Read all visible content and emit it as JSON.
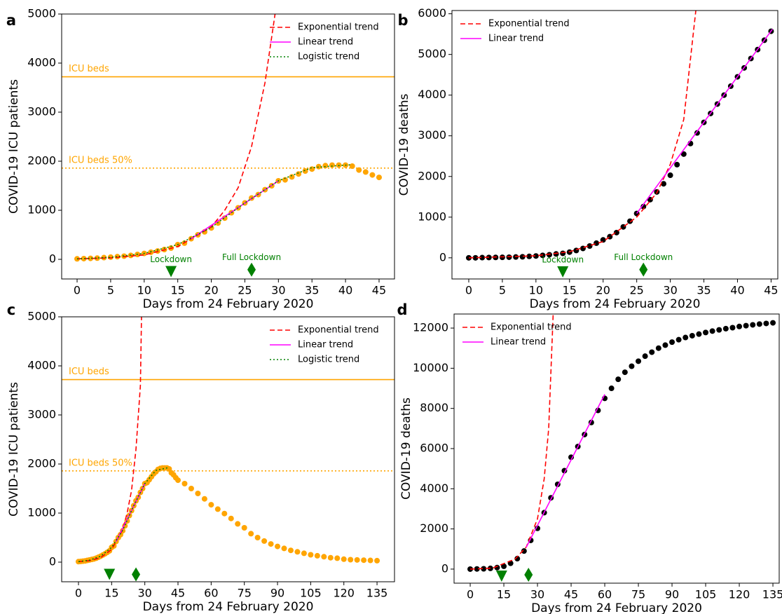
{
  "chart_data": [
    {
      "type": "scatter",
      "panel": "a",
      "xlabel": "Days from 24 February 2020",
      "ylabel": "COVID-19 ICU patients",
      "xlim": [
        -2.3,
        47.3
      ],
      "ylim": [
        -400,
        5000
      ],
      "xticks": [
        0,
        5,
        10,
        15,
        20,
        25,
        30,
        35,
        40,
        45
      ],
      "yticks": [
        0,
        1000,
        2000,
        3000,
        4000,
        5000
      ],
      "legend": "upper right",
      "series": [
        {
          "color": "#ffa500",
          "style": "points",
          "x": [
            0,
            1,
            2,
            3,
            4,
            5,
            6,
            7,
            8,
            9,
            10,
            11,
            12,
            13,
            14,
            15,
            16,
            17,
            18,
            19,
            20,
            21,
            22,
            23,
            24,
            25,
            26,
            27,
            28,
            29,
            30,
            31,
            32,
            33,
            34,
            35,
            36,
            37,
            38,
            39,
            40,
            41,
            42,
            43,
            44,
            45
          ],
          "values": [
            10,
            15,
            20,
            25,
            35,
            45,
            55,
            65,
            80,
            100,
            120,
            145,
            170,
            200,
            230,
            300,
            330,
            420,
            500,
            560,
            640,
            740,
            840,
            950,
            1050,
            1150,
            1250,
            1320,
            1420,
            1500,
            1600,
            1620,
            1680,
            1740,
            1800,
            1840,
            1890,
            1910,
            1920,
            1920,
            1920,
            1900,
            1820,
            1780,
            1720,
            1670
          ]
        },
        {
          "name": "Exponential trend",
          "color": "#ff0000",
          "style": "dashed",
          "x": [
            0,
            5,
            10,
            15,
            20,
            22,
            24,
            26,
            28,
            29.5
          ],
          "values": [
            10,
            30,
            90,
            260,
            660,
            1000,
            1460,
            2300,
            3600,
            5000
          ]
        },
        {
          "name": "Linear trend",
          "color": "#ff00ff",
          "style": "solid",
          "x": [
            17,
            30
          ],
          "values": [
            420,
            1600
          ]
        },
        {
          "name": "Logistic trend",
          "color": "#008000",
          "style": "dotted",
          "x": [
            0,
            5,
            10,
            15,
            20,
            25,
            30,
            35,
            41
          ],
          "values": [
            10,
            40,
            120,
            300,
            650,
            1150,
            1600,
            1870,
            1930
          ]
        }
      ],
      "hlines": [
        {
          "label": "ICU beds",
          "value": 3720,
          "color": "#ffa500",
          "style": "solid"
        },
        {
          "label": "ICU beds 50%",
          "value": 1860,
          "color": "#ffa500",
          "style": "dotted"
        }
      ],
      "markers": [
        {
          "label": "Lockdown",
          "x": 14,
          "y": -250,
          "shape": "v"
        },
        {
          "label": "Full Lockdown",
          "x": 26,
          "y": -210,
          "shape": "d"
        }
      ]
    },
    {
      "type": "scatter",
      "panel": "b",
      "xlabel": "Days from 24 February 2020",
      "ylabel": "COVID-19 deaths",
      "xlim": [
        -2.5,
        46
      ],
      "ylim": [
        -520,
        6080
      ],
      "xticks": [
        0,
        5,
        10,
        15,
        20,
        25,
        30,
        35,
        40,
        45
      ],
      "yticks": [
        0,
        1000,
        2000,
        3000,
        4000,
        5000,
        6000
      ],
      "legend": "upper left",
      "series": [
        {
          "color": "#000000",
          "style": "points",
          "x": [
            0,
            1,
            2,
            3,
            4,
            5,
            6,
            7,
            8,
            9,
            10,
            11,
            12,
            13,
            14,
            15,
            16,
            17,
            18,
            19,
            20,
            21,
            22,
            23,
            24,
            25,
            26,
            27,
            28,
            29,
            30,
            31,
            32,
            33,
            34,
            35,
            36,
            37,
            38,
            39,
            40,
            41,
            42,
            43,
            44,
            45
          ],
          "values": [
            0,
            0,
            5,
            8,
            10,
            12,
            15,
            20,
            25,
            35,
            45,
            60,
            75,
            95,
            110,
            140,
            180,
            230,
            290,
            360,
            440,
            520,
            620,
            760,
            900,
            1090,
            1260,
            1430,
            1620,
            1820,
            2030,
            2290,
            2550,
            2810,
            3070,
            3330,
            3550,
            3780,
            4000,
            4220,
            4450,
            4670,
            4900,
            5120,
            5350,
            5570
          ]
        },
        {
          "name": "Exponential trend",
          "color": "#ff0000",
          "style": "dashed",
          "x": [
            0,
            10,
            15,
            20,
            25,
            28,
            30,
            32,
            33.8
          ],
          "values": [
            0,
            50,
            150,
            400,
            1000,
            1600,
            2300,
            3400,
            6080
          ]
        },
        {
          "name": "Linear trend",
          "color": "#ff00ff",
          "style": "solid",
          "x": [
            25,
            45.2
          ],
          "values": [
            1090,
            5620
          ]
        }
      ],
      "markers": [
        {
          "label": "Lockdown",
          "x": 14,
          "y": -345,
          "shape": "v"
        },
        {
          "label": "Full Lockdown",
          "x": 26,
          "y": -290,
          "shape": "d"
        }
      ]
    },
    {
      "type": "scatter",
      "panel": "c",
      "xlabel": "Days from 24 February 2020",
      "ylabel": "COVID-19 ICU patients",
      "xlim": [
        -7.6,
        142.9
      ],
      "ylim": [
        -400,
        5000
      ],
      "xticks": [
        0,
        15,
        30,
        45,
        60,
        75,
        90,
        105,
        120,
        135
      ],
      "yticks": [
        0,
        1000,
        2000,
        3000,
        4000,
        5000
      ],
      "legend": "upper right",
      "series": [
        {
          "color": "#ffa500",
          "style": "points",
          "x": [
            0,
            1,
            2,
            3,
            4,
            5,
            6,
            7,
            8,
            9,
            10,
            11,
            12,
            13,
            14,
            15,
            16,
            17,
            18,
            19,
            20,
            21,
            22,
            23,
            24,
            25,
            26,
            27,
            28,
            29,
            30,
            31,
            32,
            33,
            34,
            35,
            36,
            37,
            38,
            39,
            40,
            41,
            42,
            43,
            44,
            45,
            48,
            51,
            54,
            57,
            60,
            63,
            66,
            69,
            72,
            75,
            78,
            81,
            84,
            87,
            90,
            93,
            96,
            99,
            102,
            105,
            108,
            111,
            114,
            117,
            120,
            123,
            126,
            129,
            132,
            135
          ],
          "values": [
            10,
            15,
            20,
            25,
            35,
            45,
            55,
            65,
            80,
            100,
            120,
            145,
            170,
            200,
            230,
            300,
            330,
            420,
            500,
            560,
            640,
            740,
            840,
            950,
            1050,
            1150,
            1250,
            1320,
            1420,
            1500,
            1600,
            1620,
            1680,
            1740,
            1800,
            1840,
            1890,
            1910,
            1920,
            1920,
            1920,
            1900,
            1820,
            1780,
            1720,
            1670,
            1600,
            1500,
            1400,
            1290,
            1170,
            1080,
            990,
            890,
            780,
            700,
            580,
            500,
            430,
            370,
            320,
            280,
            240,
            210,
            180,
            150,
            130,
            110,
            90,
            80,
            60,
            50,
            45,
            40,
            35,
            30
          ]
        },
        {
          "name": "Exponential trend",
          "color": "#ff0000",
          "style": "dashed",
          "x": [
            0,
            5,
            10,
            15,
            20,
            22,
            24,
            26,
            28,
            28.5
          ],
          "values": [
            10,
            30,
            90,
            260,
            660,
            1000,
            1460,
            2300,
            3600,
            5000
          ]
        },
        {
          "name": "Linear trend",
          "color": "#ff00ff",
          "style": "solid",
          "x": [
            17,
            30
          ],
          "values": [
            420,
            1600
          ]
        },
        {
          "name": "Logistic trend",
          "color": "#008000",
          "style": "dotted",
          "x": [
            0,
            5,
            10,
            15,
            20,
            25,
            30,
            35,
            41
          ],
          "values": [
            10,
            40,
            120,
            300,
            650,
            1150,
            1600,
            1870,
            1930
          ]
        }
      ],
      "hlines": [
        {
          "label": "ICU beds",
          "value": 3720,
          "color": "#ffa500",
          "style": "solid"
        },
        {
          "label": "ICU beds 50%",
          "value": 1860,
          "color": "#ffa500",
          "style": "dotted"
        }
      ],
      "markers": [
        {
          "x": 14,
          "y": -250,
          "shape": "v"
        },
        {
          "x": 26,
          "y": -250,
          "shape": "d"
        }
      ]
    },
    {
      "type": "scatter",
      "panel": "d",
      "xlabel": "Days from 24 February 2020",
      "ylabel": "COVID-19 deaths",
      "xlim": [
        -7.2,
        137.8
      ],
      "ylim": [
        -700,
        12700
      ],
      "xticks": [
        0,
        15,
        30,
        45,
        60,
        75,
        90,
        105,
        120,
        135
      ],
      "yticks": [
        0,
        2000,
        4000,
        6000,
        8000,
        10000,
        12000
      ],
      "legend": "upper left",
      "series": [
        {
          "color": "#000000",
          "style": "points",
          "x": [
            0,
            3,
            6,
            9,
            12,
            15,
            18,
            21,
            24,
            27,
            30,
            33,
            36,
            39,
            42,
            45,
            48,
            51,
            54,
            57,
            60,
            63,
            66,
            69,
            72,
            75,
            78,
            81,
            84,
            87,
            90,
            93,
            96,
            99,
            102,
            105,
            108,
            111,
            114,
            117,
            120,
            123,
            126,
            129,
            132,
            135
          ],
          "values": [
            0,
            8,
            15,
            35,
            75,
            140,
            290,
            520,
            900,
            1430,
            2030,
            2810,
            3550,
            4220,
            4900,
            5570,
            6100,
            6700,
            7300,
            7900,
            8500,
            9000,
            9450,
            9800,
            10100,
            10350,
            10600,
            10800,
            11000,
            11150,
            11300,
            11420,
            11530,
            11620,
            11700,
            11780,
            11850,
            11910,
            11970,
            12020,
            12080,
            12120,
            12160,
            12200,
            12230,
            12260
          ]
        },
        {
          "name": "Exponential trend",
          "color": "#ff0000",
          "style": "dashed",
          "x": [
            0,
            10,
            20,
            25,
            30,
            33,
            35,
            37
          ],
          "values": [
            0,
            50,
            500,
            1100,
            2500,
            4500,
            7000,
            12700
          ]
        },
        {
          "name": "Linear trend",
          "color": "#ff00ff",
          "style": "solid",
          "x": [
            25,
            60
          ],
          "values": [
            1090,
            8700
          ]
        }
      ],
      "markers": [
        {
          "x": 14,
          "y": -350,
          "shape": "v"
        },
        {
          "x": 26,
          "y": -280,
          "shape": "d"
        }
      ]
    }
  ]
}
